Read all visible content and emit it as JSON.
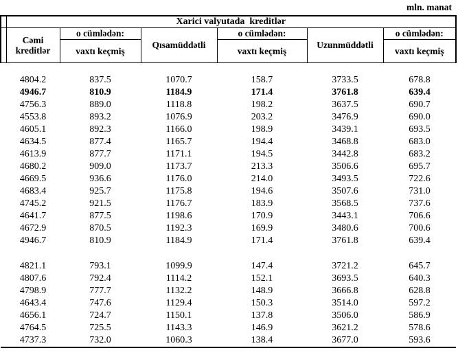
{
  "unit_label": "mln. manat",
  "header": {
    "spanning_title": "Xarici valyutada  kreditlər",
    "total": "Cəmi kreditlər",
    "including": "o cümlədən:",
    "overdue": "vaxtı keçmiş",
    "short_term": "Qısamüddətli",
    "long_term": "Uzunmüddətli"
  },
  "body": {
    "columns_order": [
      "total",
      "total_overdue",
      "short_term",
      "short_term_overdue",
      "long_term",
      "long_term_overdue"
    ],
    "groups": [
      {
        "bold_row_index": 1,
        "rows": [
          [
            "4804.2",
            "837.5",
            "1070.7",
            "158.7",
            "3733.5",
            "678.8"
          ],
          [
            "4946.7",
            "810.9",
            "1184.9",
            "171.4",
            "3761.8",
            "639.4"
          ],
          [
            "4756.3",
            "889.0",
            "1118.8",
            "198.2",
            "3637.5",
            "690.7"
          ],
          [
            "4553.8",
            "893.2",
            "1076.9",
            "203.2",
            "3476.9",
            "690.0"
          ],
          [
            "4605.1",
            "892.3",
            "1166.0",
            "198.9",
            "3439.1",
            "693.5"
          ],
          [
            "4634.5",
            "877.4",
            "1165.7",
            "194.4",
            "3468.8",
            "683.0"
          ],
          [
            "4613.9",
            "877.7",
            "1171.1",
            "194.5",
            "3442.8",
            "683.2"
          ],
          [
            "4680.2",
            "909.0",
            "1173.7",
            "213.3",
            "3506.6",
            "695.7"
          ],
          [
            "4669.5",
            "936.6",
            "1176.0",
            "214.0",
            "3493.5",
            "722.6"
          ],
          [
            "4683.4",
            "925.7",
            "1175.8",
            "194.6",
            "3507.6",
            "731.0"
          ],
          [
            "4745.2",
            "921.5",
            "1176.7",
            "183.9",
            "3568.5",
            "737.6"
          ],
          [
            "4641.7",
            "877.5",
            "1198.6",
            "170.9",
            "3443.1",
            "706.6"
          ],
          [
            "4672.9",
            "870.5",
            "1192.3",
            "169.9",
            "3480.6",
            "700.6"
          ],
          [
            "4946.7",
            "810.9",
            "1184.9",
            "171.4",
            "3761.8",
            "639.4"
          ]
        ]
      },
      {
        "bold_row_index": -1,
        "rows": [
          [
            "4821.1",
            "793.1",
            "1099.9",
            "147.4",
            "3721.2",
            "645.7"
          ],
          [
            "4807.6",
            "792.4",
            "1114.2",
            "152.1",
            "3693.5",
            "640.3"
          ],
          [
            "4798.9",
            "777.7",
            "1132.2",
            "148.9",
            "3666.8",
            "628.8"
          ],
          [
            "4643.4",
            "747.6",
            "1129.4",
            "150.3",
            "3514.0",
            "597.2"
          ],
          [
            "4656.1",
            "724.7",
            "1150.1",
            "137.8",
            "3506.0",
            "586.9"
          ],
          [
            "4764.5",
            "725.5",
            "1143.3",
            "146.9",
            "3621.2",
            "578.6"
          ],
          [
            "4737.3",
            "732.0",
            "1060.3",
            "138.4",
            "3677.0",
            "593.6"
          ]
        ]
      }
    ]
  }
}
